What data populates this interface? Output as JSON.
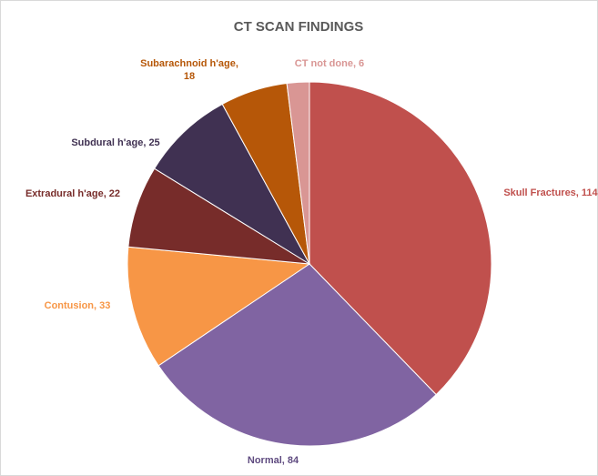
{
  "chart_data": {
    "type": "pie",
    "title": "CT SCAN FINDINGS",
    "labels": [
      "Skull Fractures, 114",
      "Normal, 84",
      "Contusion, 33",
      "Extradural h'age, 22",
      "Subdural h'age, 25",
      "Subarachnoid h'age, 18",
      "CT not done, 6"
    ],
    "values": [
      114,
      84,
      33,
      22,
      25,
      18,
      6
    ],
    "colors": [
      "#c0504d",
      "#8064a2",
      "#f79646",
      "#772c2a",
      "#403152",
      "#b65708",
      "#d99694"
    ],
    "label_colors": [
      "#c0504d",
      "#5f4b80",
      "#f79646",
      "#772c2a",
      "#403152",
      "#b65708",
      "#d99694"
    ]
  }
}
